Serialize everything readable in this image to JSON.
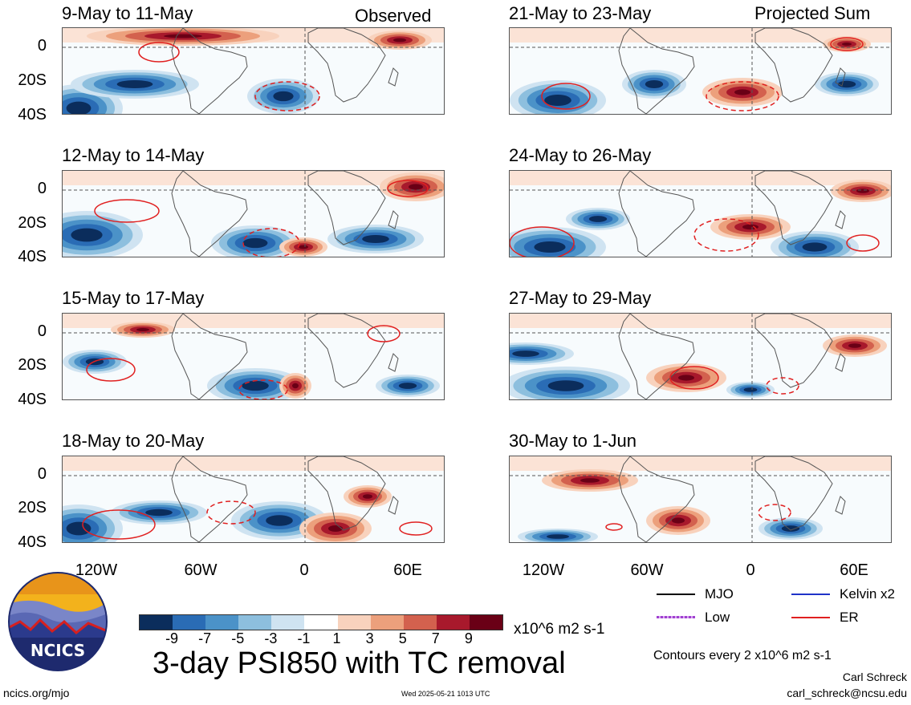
{
  "left_header": "Observed",
  "right_header": "Projected Sum",
  "left_panels": [
    {
      "title": "9-May to 11-May"
    },
    {
      "title": "12-May to 14-May"
    },
    {
      "title": "15-May to 17-May"
    },
    {
      "title": "18-May to 20-May"
    }
  ],
  "right_panels": [
    {
      "title": "21-May to 23-May"
    },
    {
      "title": "24-May to 26-May"
    },
    {
      "title": "27-May to 29-May"
    },
    {
      "title": "30-May to 1-Jun"
    }
  ],
  "y_ticks": [
    "0",
    "20S",
    "40S"
  ],
  "x_ticks": [
    "120W",
    "60W",
    "0",
    "60E"
  ],
  "legend": {
    "mjo": "MJO",
    "kelvin": "Kelvin x2",
    "low": "Low",
    "er": "ER",
    "colors": {
      "mjo": "#000000",
      "kelvin": "#1f33c8",
      "low": "#a040d0",
      "er": "#e02020"
    }
  },
  "colorbar": {
    "levels": [
      "-9",
      "-7",
      "-5",
      "-3",
      "-1",
      "1",
      "3",
      "5",
      "7",
      "9"
    ],
    "colors": [
      "#0b2d5c",
      "#2a6cb5",
      "#4b92c8",
      "#8dbfde",
      "#cfe3f1",
      "#ffffff",
      "#f8d2bd",
      "#eca07c",
      "#d3614e",
      "#a8192c",
      "#6a0016"
    ],
    "units": "x10^6 m2 s-1"
  },
  "main_title": "3-day PSI850 with TC removal",
  "contour_note": "Contours every 2 x10^6 m2 s-1",
  "author": "Carl Schreck",
  "email": "carl_schreck@ncsu.edu",
  "site": "ncics.org/mjo",
  "timestamp": "Wed 2025-05-21 1013 UTC",
  "logo_text": "NCICS"
}
